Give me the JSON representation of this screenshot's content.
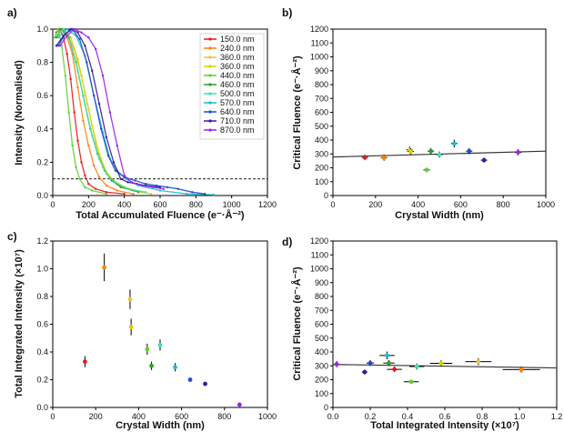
{
  "chart_data": [
    {
      "panel": "a)",
      "type": "line",
      "xlabel": "Total Accumulated Fluence (e⁻·Å⁻²)",
      "ylabel": "Intensity (Normalised)",
      "xlim": [
        0,
        1200
      ],
      "ylim": [
        0,
        1.0
      ],
      "xticks": [
        0,
        200,
        400,
        600,
        800,
        1000,
        1200
      ],
      "yticks": [
        0.0,
        0.2,
        0.4,
        0.6,
        0.8,
        1.0
      ],
      "threshold": 0.1,
      "legend_position": "top-right",
      "series": [
        {
          "name": "150.0 nm",
          "color": "#e41a1c",
          "points": [
            [
              20,
              0.98
            ],
            [
              40,
              1.0
            ],
            [
              60,
              0.95
            ],
            [
              80,
              0.85
            ],
            [
              100,
              0.7
            ],
            [
              120,
              0.5
            ],
            [
              140,
              0.33
            ],
            [
              160,
              0.2
            ],
            [
              180,
              0.12
            ],
            [
              200,
              0.07
            ],
            [
              240,
              0.04
            ],
            [
              300,
              0.02
            ],
            [
              400,
              0.01
            ]
          ]
        },
        {
          "name": "240.0 nm",
          "color": "#ff7f0e",
          "points": [
            [
              20,
              0.95
            ],
            [
              50,
              1.0
            ],
            [
              80,
              0.95
            ],
            [
              110,
              0.85
            ],
            [
              140,
              0.65
            ],
            [
              170,
              0.45
            ],
            [
              200,
              0.3
            ],
            [
              230,
              0.18
            ],
            [
              260,
              0.11
            ],
            [
              300,
              0.06
            ],
            [
              360,
              0.03
            ],
            [
              450,
              0.01
            ]
          ]
        },
        {
          "name": "360.0 nm",
          "color": "#f0c040",
          "points": [
            [
              20,
              0.96
            ],
            [
              50,
              1.0
            ],
            [
              80,
              0.97
            ],
            [
              120,
              0.88
            ],
            [
              160,
              0.72
            ],
            [
              200,
              0.52
            ],
            [
              240,
              0.32
            ],
            [
              280,
              0.17
            ],
            [
              320,
              0.1
            ],
            [
              370,
              0.06
            ],
            [
              450,
              0.03
            ],
            [
              550,
              0.01
            ]
          ]
        },
        {
          "name": "360.0 nm",
          "color": "#d4d400",
          "points": [
            [
              20,
              0.95
            ],
            [
              60,
              1.0
            ],
            [
              100,
              0.95
            ],
            [
              140,
              0.82
            ],
            [
              180,
              0.62
            ],
            [
              220,
              0.42
            ],
            [
              260,
              0.25
            ],
            [
              300,
              0.14
            ],
            [
              340,
              0.09
            ],
            [
              400,
              0.05
            ],
            [
              500,
              0.02
            ]
          ]
        },
        {
          "name": "440.0 nm",
          "color": "#66cc33",
          "points": [
            [
              10,
              0.95
            ],
            [
              30,
              1.0
            ],
            [
              50,
              0.9
            ],
            [
              70,
              0.72
            ],
            [
              90,
              0.5
            ],
            [
              110,
              0.3
            ],
            [
              130,
              0.17
            ],
            [
              150,
              0.1
            ],
            [
              180,
              0.05
            ],
            [
              220,
              0.03
            ],
            [
              300,
              0.01
            ]
          ]
        },
        {
          "name": "460.0 nm",
          "color": "#2ca02c",
          "points": [
            [
              20,
              0.95
            ],
            [
              50,
              1.0
            ],
            [
              90,
              0.95
            ],
            [
              130,
              0.8
            ],
            [
              170,
              0.6
            ],
            [
              210,
              0.4
            ],
            [
              250,
              0.25
            ],
            [
              290,
              0.15
            ],
            [
              330,
              0.09
            ],
            [
              380,
              0.05
            ],
            [
              480,
              0.02
            ]
          ]
        },
        {
          "name": "500.0 nm",
          "color": "#40e0b0",
          "points": [
            [
              20,
              0.96
            ],
            [
              60,
              1.0
            ],
            [
              100,
              0.92
            ],
            [
              140,
              0.75
            ],
            [
              180,
              0.55
            ],
            [
              220,
              0.36
            ],
            [
              260,
              0.22
            ],
            [
              300,
              0.13
            ],
            [
              350,
              0.08
            ],
            [
              420,
              0.04
            ],
            [
              520,
              0.02
            ]
          ]
        },
        {
          "name": "570.0 nm",
          "color": "#17becf",
          "points": [
            [
              30,
              0.95
            ],
            [
              80,
              1.0
            ],
            [
              130,
              0.96
            ],
            [
              180,
              0.84
            ],
            [
              230,
              0.6
            ],
            [
              280,
              0.38
            ],
            [
              320,
              0.22
            ],
            [
              360,
              0.15
            ],
            [
              410,
              0.1
            ],
            [
              480,
              0.06
            ],
            [
              600,
              0.03
            ],
            [
              750,
              0.01
            ],
            [
              900,
              0.005
            ]
          ]
        },
        {
          "name": "640.0 nm",
          "color": "#1f4fd0",
          "points": [
            [
              30,
              0.9
            ],
            [
              70,
              0.97
            ],
            [
              110,
              1.0
            ],
            [
              150,
              0.94
            ],
            [
              190,
              0.8
            ],
            [
              230,
              0.6
            ],
            [
              270,
              0.4
            ],
            [
              310,
              0.24
            ],
            [
              350,
              0.15
            ],
            [
              400,
              0.11
            ],
            [
              460,
              0.09
            ],
            [
              520,
              0.07
            ],
            [
              580,
              0.06
            ],
            [
              640,
              0.05
            ],
            [
              700,
              0.04
            ],
            [
              780,
              0.02
            ],
            [
              850,
              0.01
            ]
          ]
        },
        {
          "name": "710.0 nm",
          "color": "#3a1aa0",
          "points": [
            [
              20,
              0.9
            ],
            [
              60,
              0.96
            ],
            [
              100,
              1.0
            ],
            [
              140,
              0.98
            ],
            [
              180,
              0.9
            ],
            [
              220,
              0.75
            ],
            [
              260,
              0.55
            ],
            [
              300,
              0.35
            ],
            [
              340,
              0.2
            ],
            [
              380,
              0.1
            ],
            [
              420,
              0.08
            ],
            [
              470,
              0.07
            ],
            [
              520,
              0.06
            ],
            [
              600,
              0.05
            ]
          ]
        },
        {
          "name": "870.0 nm",
          "color": "#a020f0",
          "points": [
            [
              40,
              0.9
            ],
            [
              80,
              0.96
            ],
            [
              120,
              1.0
            ],
            [
              160,
              0.98
            ],
            [
              200,
              0.95
            ],
            [
              240,
              0.88
            ],
            [
              280,
              0.72
            ],
            [
              320,
              0.5
            ],
            [
              360,
              0.3
            ],
            [
              400,
              0.12
            ],
            [
              440,
              0.08
            ],
            [
              500,
              0.06
            ],
            [
              560,
              0.05
            ],
            [
              620,
              0.04
            ]
          ]
        }
      ]
    },
    {
      "panel": "b)",
      "type": "scatter",
      "xlabel": "Crystal Width (nm)",
      "ylabel": "Critical Fluence (e⁻·Å⁻²)",
      "xlim": [
        0,
        1000
      ],
      "ylim": [
        0,
        1200
      ],
      "xticks": [
        0,
        200,
        400,
        600,
        800,
        1000
      ],
      "yticks": [
        0,
        100,
        200,
        300,
        400,
        500,
        600,
        700,
        800,
        900,
        1000,
        1100,
        1200
      ],
      "fit_line": {
        "x": [
          0,
          1000
        ],
        "y": [
          278,
          320
        ]
      },
      "points": [
        {
          "x": 150,
          "y": 275,
          "xerr": 15,
          "yerr": 20,
          "color": "#e41a1c"
        },
        {
          "x": 240,
          "y": 273,
          "xerr": 15,
          "yerr": 22,
          "color": "#ff7f0e"
        },
        {
          "x": 360,
          "y": 330,
          "xerr": 15,
          "yerr": 25,
          "color": "#f0c040"
        },
        {
          "x": 365,
          "y": 318,
          "xerr": 15,
          "yerr": 22,
          "color": "#d4d400"
        },
        {
          "x": 440,
          "y": 185,
          "xerr": 15,
          "yerr": 15,
          "color": "#66cc33"
        },
        {
          "x": 460,
          "y": 320,
          "xerr": 15,
          "yerr": 22,
          "color": "#2ca02c"
        },
        {
          "x": 500,
          "y": 295,
          "xerr": 15,
          "yerr": 22,
          "color": "#40e0b0"
        },
        {
          "x": 570,
          "y": 375,
          "xerr": 15,
          "yerr": 28,
          "color": "#17becf"
        },
        {
          "x": 640,
          "y": 320,
          "xerr": 15,
          "yerr": 22,
          "color": "#1f4fd0"
        },
        {
          "x": 710,
          "y": 255,
          "xerr": 15,
          "yerr": 18,
          "color": "#3a1aa0"
        },
        {
          "x": 870,
          "y": 312,
          "xerr": 15,
          "yerr": 22,
          "color": "#a020f0"
        }
      ]
    },
    {
      "panel": "c)",
      "type": "scatter",
      "xlabel": "Crystal Width (nm)",
      "ylabel": "Total Integrated Intensity (×10⁷)",
      "xlim": [
        0,
        1000
      ],
      "ylim": [
        0,
        1.2
      ],
      "xticks": [
        0,
        200,
        400,
        600,
        800,
        1000
      ],
      "yticks": [
        0.0,
        0.2,
        0.4,
        0.6,
        0.8,
        1.0,
        1.2
      ],
      "points": [
        {
          "x": 150,
          "y": 0.33,
          "yerr": 0.04,
          "color": "#e41a1c"
        },
        {
          "x": 240,
          "y": 1.01,
          "yerr": 0.1,
          "color": "#ff7f0e"
        },
        {
          "x": 360,
          "y": 0.78,
          "yerr": 0.07,
          "color": "#f0c040"
        },
        {
          "x": 365,
          "y": 0.58,
          "yerr": 0.06,
          "color": "#d4d400"
        },
        {
          "x": 440,
          "y": 0.42,
          "yerr": 0.04,
          "color": "#66cc33"
        },
        {
          "x": 460,
          "y": 0.3,
          "yerr": 0.03,
          "color": "#2ca02c"
        },
        {
          "x": 500,
          "y": 0.45,
          "yerr": 0.04,
          "color": "#40e0b0"
        },
        {
          "x": 570,
          "y": 0.29,
          "yerr": 0.03,
          "color": "#17becf"
        },
        {
          "x": 640,
          "y": 0.2,
          "yerr": 0.015,
          "color": "#1f4fd0"
        },
        {
          "x": 710,
          "y": 0.17,
          "yerr": 0.01,
          "color": "#3a1aa0"
        },
        {
          "x": 870,
          "y": 0.02,
          "yerr": 0.005,
          "color": "#a020f0"
        }
      ]
    },
    {
      "panel": "d)",
      "type": "scatter",
      "xlabel": "Total Integrated Intensity (×10⁷)",
      "ylabel": "Critical Fluence (e⁻·Å⁻²)",
      "xlim": [
        0,
        1.2
      ],
      "ylim": [
        0,
        1200
      ],
      "xticks": [
        0.0,
        0.2,
        0.4,
        0.6,
        0.8,
        1.0,
        1.2
      ],
      "yticks": [
        0,
        100,
        200,
        300,
        400,
        500,
        600,
        700,
        800,
        900,
        1000,
        1100,
        1200
      ],
      "fit_line": {
        "x": [
          0,
          1.2
        ],
        "y": [
          310,
          285
        ]
      },
      "points": [
        {
          "x": 0.02,
          "y": 312,
          "xerr": 0.005,
          "yerr": 22,
          "color": "#a020f0"
        },
        {
          "x": 0.17,
          "y": 255,
          "xerr": 0.015,
          "yerr": 18,
          "color": "#3a1aa0"
        },
        {
          "x": 0.2,
          "y": 320,
          "xerr": 0.02,
          "yerr": 22,
          "color": "#1f4fd0"
        },
        {
          "x": 0.29,
          "y": 375,
          "xerr": 0.04,
          "yerr": 28,
          "color": "#17becf"
        },
        {
          "x": 0.3,
          "y": 320,
          "xerr": 0.03,
          "yerr": 22,
          "color": "#2ca02c"
        },
        {
          "x": 0.33,
          "y": 275,
          "xerr": 0.04,
          "yerr": 20,
          "color": "#e41a1c"
        },
        {
          "x": 0.42,
          "y": 185,
          "xerr": 0.04,
          "yerr": 15,
          "color": "#66cc33"
        },
        {
          "x": 0.45,
          "y": 295,
          "xerr": 0.04,
          "yerr": 22,
          "color": "#40e0b0"
        },
        {
          "x": 0.58,
          "y": 318,
          "xerr": 0.06,
          "yerr": 22,
          "color": "#d4d400"
        },
        {
          "x": 0.78,
          "y": 330,
          "xerr": 0.07,
          "yerr": 25,
          "color": "#f0c040"
        },
        {
          "x": 1.01,
          "y": 273,
          "xerr": 0.1,
          "yerr": 22,
          "color": "#ff7f0e"
        }
      ]
    }
  ]
}
